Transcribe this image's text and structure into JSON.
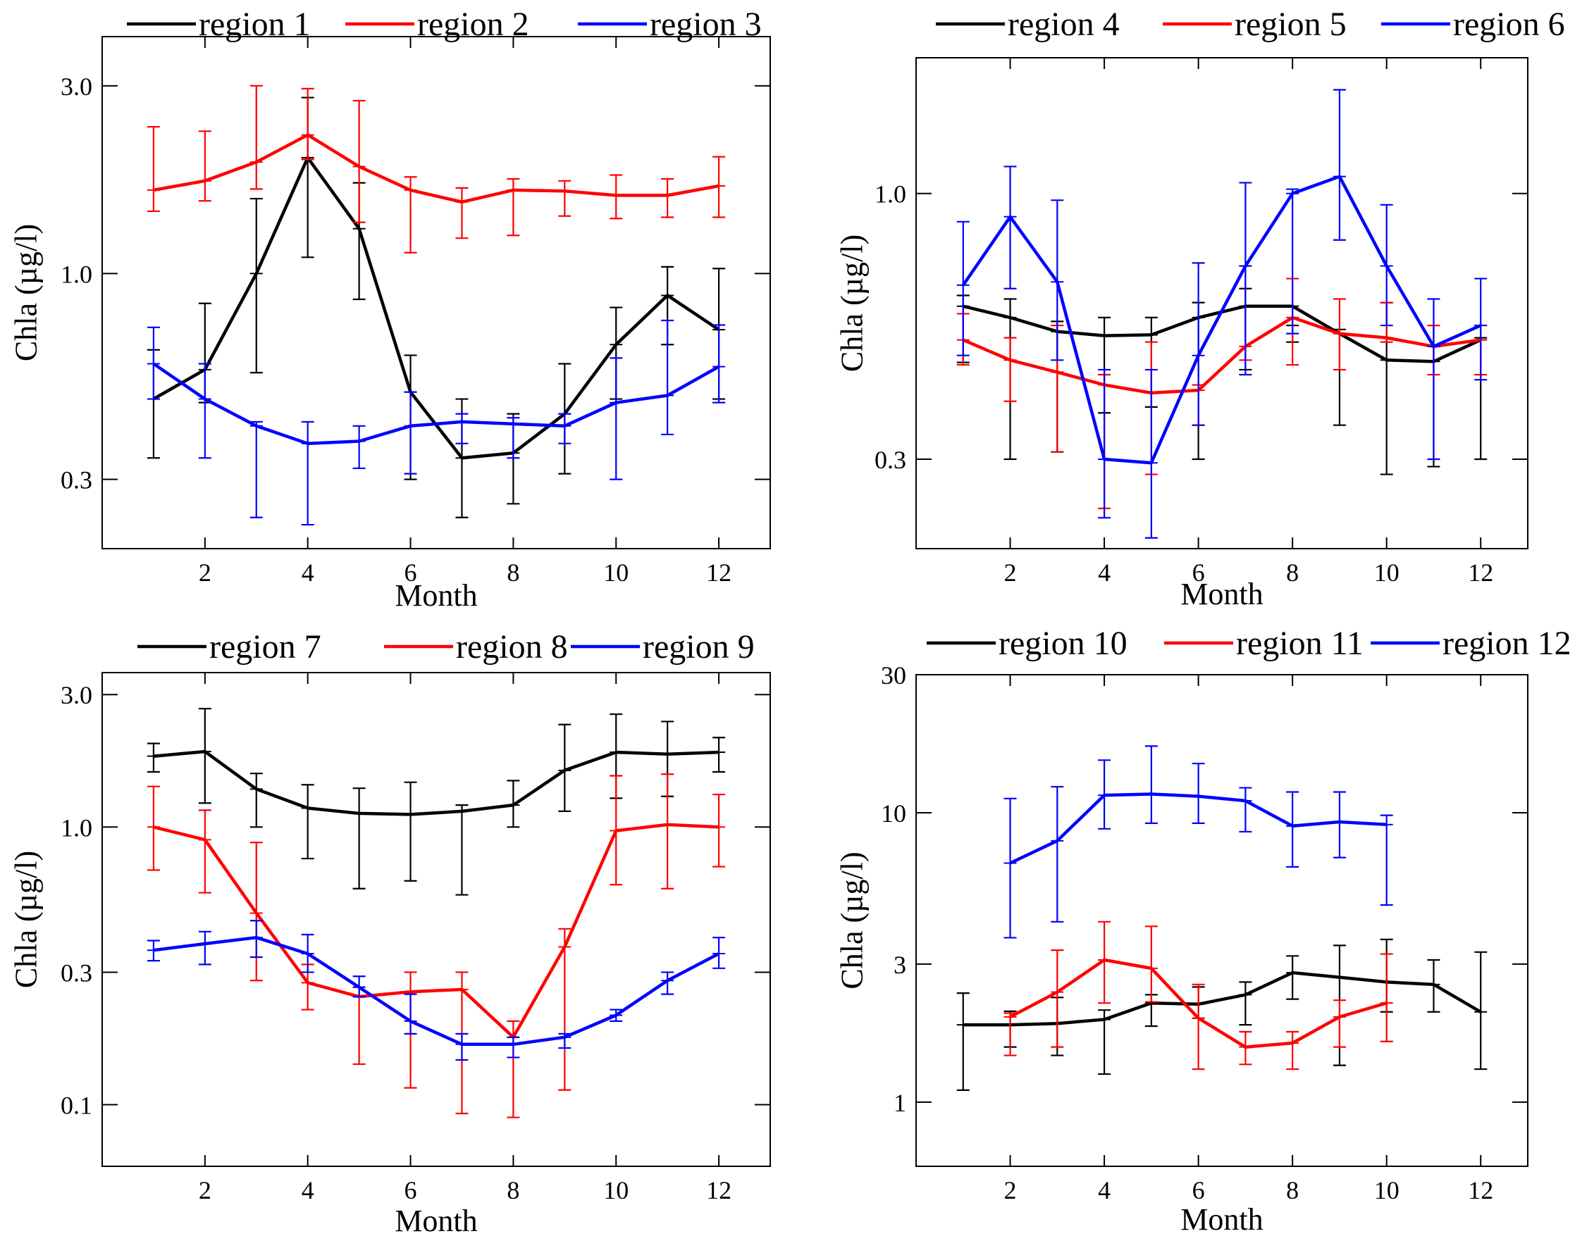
{
  "figure": {
    "description": "Monthly mean Chla for 12 regions (four panels)",
    "y_scale": "log"
  },
  "colors": {
    "black": "#000000",
    "red": "#ff0000",
    "blue": "#0000ff"
  },
  "chart_data": [
    {
      "type": "line",
      "panel": "top-left",
      "xlabel": "Month",
      "ylabel": "Chla (µg/l)",
      "ylim": [
        0.2,
        4.0
      ],
      "xlim": [
        0,
        13
      ],
      "y_scale": "log",
      "xticks": [
        2,
        4,
        6,
        8,
        10,
        12
      ],
      "xtick_labels": [
        "2",
        "4",
        "6",
        "8",
        "10",
        "12"
      ],
      "yticks": [
        0.3,
        1.0,
        3.0
      ],
      "ytick_labels": [
        "0.3",
        "1.0",
        "3.0"
      ],
      "x": [
        1,
        2,
        3,
        4,
        5,
        6,
        7,
        8,
        9,
        10,
        11,
        12
      ],
      "series": [
        {
          "name": "region 1",
          "color": "#000000",
          "values": [
            0.48,
            0.57,
            1.0,
            1.97,
            1.3,
            0.5,
            0.34,
            0.35,
            0.44,
            0.66,
            0.88,
            0.72
          ],
          "err_low": [
            0.34,
            0.47,
            0.56,
            1.1,
            0.86,
            0.3,
            0.24,
            0.26,
            0.31,
            0.48,
            0.66,
            0.48
          ],
          "err_high": [
            0.64,
            0.84,
            1.55,
            2.8,
            1.7,
            0.62,
            0.48,
            0.44,
            0.59,
            0.82,
            1.04,
            1.03
          ]
        },
        {
          "name": "region 2",
          "color": "#ff0000",
          "values": [
            1.63,
            1.72,
            1.92,
            2.25,
            1.87,
            1.63,
            1.52,
            1.63,
            1.62,
            1.58,
            1.58,
            1.67
          ],
          "err_low": [
            1.44,
            1.53,
            1.64,
            1.95,
            1.35,
            1.13,
            1.23,
            1.25,
            1.4,
            1.38,
            1.39,
            1.39
          ],
          "err_high": [
            2.36,
            2.3,
            3.0,
            2.95,
            2.75,
            1.76,
            1.65,
            1.74,
            1.72,
            1.78,
            1.74,
            1.98
          ]
        },
        {
          "name": "region 3",
          "color": "#0000ff",
          "values": [
            0.59,
            0.48,
            0.41,
            0.37,
            0.375,
            0.41,
            0.42,
            0.415,
            0.41,
            0.47,
            0.49,
            0.58
          ],
          "err_low": [
            0.48,
            0.34,
            0.24,
            0.23,
            0.32,
            0.31,
            0.37,
            0.34,
            0.37,
            0.3,
            0.39,
            0.47
          ],
          "err_high": [
            0.73,
            0.59,
            0.42,
            0.42,
            0.41,
            0.5,
            0.44,
            0.43,
            0.44,
            0.61,
            0.76,
            0.74
          ]
        }
      ]
    },
    {
      "type": "line",
      "panel": "top-right",
      "xlabel": "Month",
      "ylabel": "Chla (µg/l)",
      "ylim": [
        0.2,
        1.85
      ],
      "xlim": [
        0,
        13
      ],
      "y_scale": "log",
      "xticks": [
        2,
        4,
        6,
        8,
        10,
        12
      ],
      "xtick_labels": [
        "2",
        "4",
        "6",
        "8",
        "10",
        "12"
      ],
      "yticks": [
        0.3,
        1.0
      ],
      "ytick_labels": [
        "0.3",
        "1.0"
      ],
      "x": [
        1,
        2,
        3,
        4,
        5,
        6,
        7,
        8,
        9,
        10,
        11,
        12
      ],
      "series": [
        {
          "name": "region 4",
          "color": "#000000",
          "values": [
            0.6,
            0.57,
            0.535,
            0.525,
            0.527,
            0.57,
            0.6,
            0.6,
            0.53,
            0.47,
            0.467,
            0.515
          ],
          "err_low": [
            0.465,
            0.3,
            0.31,
            0.37,
            0.38,
            0.3,
            0.45,
            0.51,
            0.35,
            0.28,
            0.29,
            0.3
          ],
          "err_high": [
            0.63,
            0.62,
            0.56,
            0.57,
            0.57,
            0.61,
            0.65,
            0.55,
            0.54,
            0.61,
            0.55,
            0.52
          ]
        },
        {
          "name": "region 5",
          "color": "#ff0000",
          "values": [
            0.515,
            0.47,
            0.445,
            0.42,
            0.405,
            0.41,
            0.5,
            0.57,
            0.53,
            0.52,
            0.5,
            0.515
          ],
          "err_low": [
            0.46,
            0.39,
            0.31,
            0.24,
            0.28,
            0.35,
            0.47,
            0.46,
            0.45,
            0.51,
            0.44,
            0.44
          ],
          "err_high": [
            0.58,
            0.52,
            0.55,
            0.44,
            0.51,
            0.42,
            0.72,
            0.68,
            0.62,
            0.61,
            0.55,
            0.55
          ]
        },
        {
          "name": "region 6",
          "color": "#0000ff",
          "values": [
            0.66,
            0.9,
            0.67,
            0.3,
            0.295,
            0.48,
            0.72,
            1.0,
            1.08,
            0.72,
            0.5,
            0.55
          ],
          "err_low": [
            0.48,
            0.65,
            0.47,
            0.23,
            0.21,
            0.35,
            0.44,
            0.53,
            0.81,
            0.55,
            0.3,
            0.43
          ],
          "err_high": [
            0.88,
            1.13,
            0.97,
            0.45,
            0.45,
            0.73,
            1.05,
            1.02,
            1.6,
            0.95,
            0.62,
            0.68
          ]
        }
      ]
    },
    {
      "type": "line",
      "panel": "bottom-left",
      "xlabel": "Month",
      "ylabel": "Chla (µg/l)",
      "ylim": [
        0.06,
        3.6
      ],
      "xlim": [
        0,
        13
      ],
      "y_scale": "log",
      "xticks": [
        2,
        4,
        6,
        8,
        10,
        12
      ],
      "xtick_labels": [
        "2",
        "4",
        "6",
        "8",
        "10",
        "12"
      ],
      "yticks": [
        0.1,
        0.3,
        1.0,
        3.0
      ],
      "ytick_labels": [
        "0.1",
        "0.3",
        "1.0",
        "3.0"
      ],
      "x": [
        1,
        2,
        3,
        4,
        5,
        6,
        7,
        8,
        9,
        10,
        11,
        12
      ],
      "series": [
        {
          "name": "region 7",
          "color": "#000000",
          "values": [
            1.8,
            1.87,
            1.37,
            1.17,
            1.12,
            1.11,
            1.14,
            1.2,
            1.6,
            1.86,
            1.83,
            1.86
          ],
          "err_low": [
            1.58,
            1.22,
            1.0,
            0.77,
            0.6,
            0.64,
            0.57,
            1.0,
            1.14,
            1.27,
            1.29,
            1.58
          ],
          "err_high": [
            2.0,
            2.67,
            1.56,
            1.42,
            1.38,
            1.45,
            1.2,
            1.47,
            2.34,
            2.55,
            2.4,
            2.1
          ]
        },
        {
          "name": "region 8",
          "color": "#ff0000",
          "values": [
            1.0,
            0.9,
            0.49,
            0.275,
            0.245,
            0.255,
            0.26,
            0.175,
            0.37,
            0.97,
            1.02,
            1.0
          ],
          "err_low": [
            0.7,
            0.58,
            0.28,
            0.22,
            0.14,
            0.115,
            0.093,
            0.09,
            0.113,
            0.62,
            0.6,
            0.72
          ],
          "err_high": [
            1.4,
            1.15,
            0.88,
            0.32,
            0.265,
            0.3,
            0.3,
            0.2,
            0.43,
            1.53,
            1.55,
            1.31
          ]
        },
        {
          "name": "region 9",
          "color": "#0000ff",
          "values": [
            0.36,
            0.38,
            0.4,
            0.35,
            0.265,
            0.2,
            0.165,
            0.165,
            0.175,
            0.21,
            0.28,
            0.35
          ],
          "err_low": [
            0.33,
            0.32,
            0.34,
            0.3,
            0.245,
            0.18,
            0.145,
            0.148,
            0.16,
            0.2,
            0.25,
            0.31
          ],
          "err_high": [
            0.39,
            0.42,
            0.46,
            0.41,
            0.29,
            0.25,
            0.18,
            0.175,
            0.18,
            0.22,
            0.3,
            0.4
          ]
        }
      ]
    },
    {
      "type": "line",
      "panel": "bottom-right",
      "xlabel": "Month",
      "ylabel": "Chla (µg/l)",
      "ylim": [
        0.6,
        30.0
      ],
      "xlim": [
        0,
        13
      ],
      "y_scale": "log",
      "xticks": [
        2,
        4,
        6,
        8,
        10,
        12
      ],
      "xtick_labels": [
        "2",
        "4",
        "6",
        "8",
        "10",
        "12"
      ],
      "yticks": [
        1,
        3,
        10,
        30
      ],
      "ytick_labels": [
        "1",
        "3",
        "10",
        "30"
      ],
      "x": [
        1,
        2,
        3,
        4,
        5,
        6,
        7,
        8,
        9,
        10,
        11,
        12
      ],
      "series": [
        {
          "name": "region 10",
          "color": "#000000",
          "values": [
            1.85,
            1.85,
            1.87,
            1.93,
            2.2,
            2.18,
            2.35,
            2.8,
            2.7,
            2.6,
            2.55,
            2.05
          ],
          "err_low": [
            1.1,
            1.55,
            1.45,
            1.25,
            1.83,
            1.95,
            1.85,
            2.27,
            1.34,
            2.05,
            2.05,
            1.3
          ],
          "err_high": [
            2.38,
            2.06,
            2.3,
            2.08,
            2.35,
            2.5,
            2.6,
            3.2,
            3.48,
            3.65,
            3.1,
            3.3
          ]
        },
        {
          "name": "region 11",
          "color": "#ff0000",
          "values": [
            null,
            1.97,
            2.4,
            3.1,
            2.9,
            1.95,
            1.55,
            1.6,
            1.97,
            2.2,
            null,
            null
          ],
          "err_low": [
            null,
            1.45,
            1.55,
            2.2,
            2.22,
            1.3,
            1.35,
            1.3,
            1.55,
            1.62,
            null,
            null
          ],
          "err_high": [
            null,
            2.03,
            3.35,
            4.2,
            4.05,
            2.55,
            1.75,
            1.75,
            2.25,
            3.25,
            null,
            null
          ]
        },
        {
          "name": "region 12",
          "color": "#0000ff",
          "values": [
            null,
            6.7,
            8.0,
            11.5,
            11.6,
            11.4,
            11.0,
            9.0,
            9.3,
            9.1,
            null,
            null
          ],
          "err_low": [
            null,
            3.7,
            4.2,
            8.8,
            9.2,
            9.2,
            8.6,
            6.5,
            7.0,
            4.8,
            null,
            null
          ],
          "err_high": [
            null,
            11.2,
            12.3,
            15.2,
            17.0,
            14.8,
            12.2,
            11.8,
            11.8,
            9.8,
            null,
            null
          ]
        }
      ]
    }
  ]
}
